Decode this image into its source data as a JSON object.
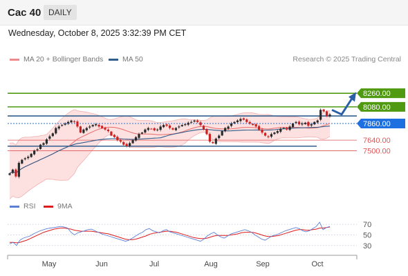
{
  "header": {
    "title": "Cac 40",
    "period": "DAILY",
    "datetime": "Wednesday, October 8, 2025 3:32:39 PM CET"
  },
  "legend": {
    "items": [
      {
        "label": "MA 20 + Bollinger Bands",
        "color": "#f08a8a"
      },
      {
        "label": "MA 50",
        "color": "#2f5d8c"
      }
    ],
    "copyright": "Research © 2025 Trading Central"
  },
  "rsi_legend": {
    "items": [
      {
        "label": "RSI",
        "color": "#5b7fd6"
      },
      {
        "label": "9MA",
        "color": "#e01b1b"
      }
    ]
  },
  "colors": {
    "resistance": "#4f9a10",
    "pivot": "#1e6fe0",
    "support": "#e05555",
    "candle_up": "#2a2a2a",
    "candle_down": "#cc2020",
    "bollinger_fill": "#fde0e0",
    "ma50": "#2f5d8c",
    "rsi": "#5b7fd6",
    "rsi_ma": "#e01b1b"
  },
  "chart_data": [
    {
      "type": "candlestick",
      "x_tick_labels": [
        "May",
        "Jun",
        "Jul",
        "Aug",
        "Sep",
        "Oct"
      ],
      "ylim": [
        6920,
        8380
      ],
      "levels": [
        {
          "label": "8260.00",
          "value": 8260,
          "kind": "resistance"
        },
        {
          "label": "8080.00",
          "value": 8080,
          "kind": "resistance"
        },
        {
          "label": "7860.00",
          "value": 7860,
          "kind": "pivot"
        },
        {
          "label": "7640.00",
          "value": 7640,
          "kind": "support"
        },
        {
          "label": "7500.00",
          "value": 7500,
          "kind": "support"
        }
      ],
      "horizontal_lines": [
        8260,
        8080,
        7960,
        7560
      ],
      "projected_path": [
        [
          0,
          8040
        ],
        [
          1,
          7980
        ],
        [
          2,
          8220
        ]
      ],
      "close_series": [
        7200,
        7250,
        7160,
        7340,
        7380,
        7400,
        7420,
        7460,
        7500,
        7520,
        7580,
        7600,
        7650,
        7690,
        7730,
        7800,
        7820,
        7840,
        7860,
        7880,
        7900,
        7880,
        7820,
        7740,
        7780,
        7800,
        7820,
        7840,
        7850,
        7820,
        7800,
        7780,
        7760,
        7700,
        7680,
        7640,
        7620,
        7580,
        7560,
        7600,
        7640,
        7680,
        7720,
        7740,
        7780,
        7800,
        7790,
        7770,
        7780,
        7820,
        7840,
        7830,
        7800,
        7780,
        7800,
        7820,
        7840,
        7850,
        7870,
        7880,
        7900,
        7880,
        7840,
        7780,
        7720,
        7620,
        7600,
        7660,
        7700,
        7760,
        7800,
        7820,
        7860,
        7880,
        7900,
        7920,
        7910,
        7880,
        7860,
        7840,
        7820,
        7780,
        7740,
        7700,
        7680,
        7720,
        7740,
        7760,
        7790,
        7800,
        7780,
        7820,
        7860,
        7880,
        7850,
        7860,
        7870,
        7830,
        7850,
        7880,
        7900,
        8040,
        8020,
        7960,
        7980
      ]
    },
    {
      "type": "line",
      "series": [
        {
          "name": "RSI"
        },
        {
          "name": "9MA"
        }
      ],
      "y_tick_labels": [
        "70",
        "50",
        "30"
      ],
      "ylim": [
        14,
        82
      ],
      "levels": [
        70,
        50,
        30
      ],
      "rsi": [
        33,
        36,
        30,
        40,
        44,
        46,
        48,
        52,
        55,
        58,
        60,
        62,
        63,
        64,
        65,
        66,
        65,
        63,
        55,
        50,
        54,
        56,
        58,
        60,
        61,
        58,
        55,
        52,
        50,
        48,
        46,
        44,
        42,
        40,
        38,
        40,
        44,
        48,
        52,
        55,
        60,
        62,
        58,
        56,
        54,
        58,
        60,
        56,
        54,
        52,
        50,
        48,
        46,
        44,
        42,
        40,
        38,
        42,
        48,
        52,
        55,
        50,
        46,
        44,
        48,
        52,
        54,
        56,
        58,
        60,
        58,
        55,
        50,
        46,
        42,
        40,
        44,
        48,
        50,
        52,
        55,
        58,
        60,
        62,
        64,
        62,
        58,
        56,
        58,
        62,
        66,
        74,
        60,
        64,
        66
      ],
      "ma": [
        36,
        36,
        35,
        36,
        38,
        40,
        43,
        46,
        49,
        52,
        55,
        57,
        59,
        61,
        62,
        63,
        63,
        62,
        61,
        59,
        58,
        57,
        57,
        57,
        57,
        56,
        55,
        54,
        53,
        52,
        50,
        48,
        46,
        44,
        42,
        41,
        41,
        42,
        44,
        46,
        48,
        51,
        53,
        54,
        55,
        56,
        57,
        57,
        56,
        55,
        53,
        51,
        49,
        47,
        45,
        44,
        43,
        43,
        44,
        46,
        48,
        49,
        49,
        49,
        49,
        50,
        51,
        52,
        54,
        55,
        55,
        55,
        54,
        52,
        50,
        48,
        47,
        47,
        48,
        49,
        51,
        53,
        55,
        57,
        59,
        60,
        60,
        59,
        59,
        60,
        61,
        63,
        63,
        64,
        65
      ]
    }
  ]
}
